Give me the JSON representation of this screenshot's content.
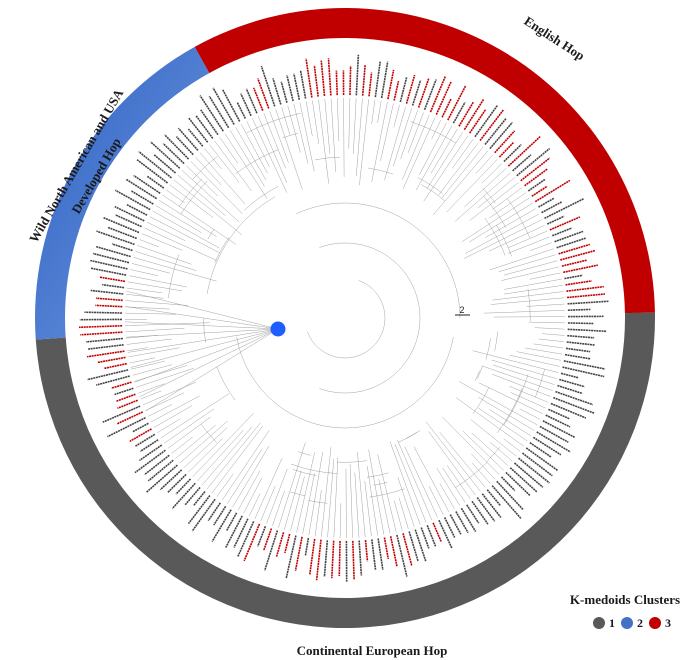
{
  "clades": [
    {
      "label": "English Hop",
      "cluster": "3",
      "color": "#c00000"
    },
    {
      "label": "Wild North American and USA",
      "label2": "Developed Hop",
      "cluster": "2",
      "color": "#4472c4"
    },
    {
      "label": "Continental European Hop",
      "cluster": "1",
      "color": "#595959"
    }
  ],
  "legend": {
    "title": "K-medoids Clusters",
    "items": [
      {
        "label": "1",
        "color": "#595959"
      },
      {
        "label": "2",
        "color": "#4472c4"
      },
      {
        "label": "3",
        "color": "#c00000"
      }
    ]
  },
  "scale_bar": {
    "label": "2"
  },
  "root_marker_color": "#1f5fff"
}
